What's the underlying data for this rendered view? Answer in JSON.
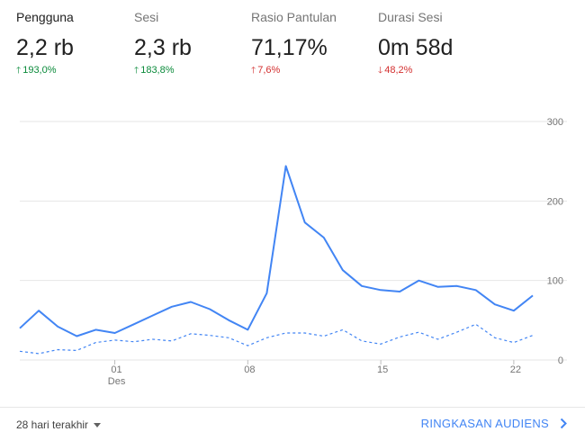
{
  "metrics": [
    {
      "label": "Pengguna",
      "value": "2,2 rb",
      "change": "193,0%",
      "direction": "up"
    },
    {
      "label": "Sesi",
      "value": "2,3 rb",
      "change": "183,8%",
      "direction": "up"
    },
    {
      "label": "Rasio Pantulan",
      "value": "71,17%",
      "change": "7,6%",
      "direction": "up-bad"
    },
    {
      "label": "Durasi Sesi",
      "value": "0m 58d",
      "change": "48,2%",
      "direction": "down"
    }
  ],
  "colors": {
    "accent": "#4285f4",
    "positive": "#0a8a3a",
    "negative": "#d32f2f",
    "grid": "#e6e6e6"
  },
  "chart_data": {
    "type": "line",
    "x_tick_labels": [
      "01",
      "08",
      "15",
      "22"
    ],
    "x_sublabel": "Des",
    "y_ticks": [
      0,
      100,
      200,
      300
    ],
    "ylim": [
      0,
      300
    ],
    "series": [
      {
        "style": "solid",
        "values": [
          40,
          62,
          42,
          30,
          38,
          34,
          45,
          56,
          67,
          73,
          64,
          50,
          38,
          84,
          244,
          173,
          154,
          113,
          93,
          88,
          86,
          100,
          92,
          93,
          88,
          70,
          62,
          81
        ]
      },
      {
        "style": "dashed",
        "values": [
          11,
          8,
          13,
          12,
          22,
          25,
          23,
          26,
          24,
          33,
          31,
          28,
          18,
          28,
          34,
          34,
          30,
          38,
          24,
          20,
          29,
          35,
          26,
          35,
          45,
          28,
          22,
          31
        ]
      }
    ]
  },
  "footer": {
    "range_label": "28 hari terakhir",
    "link_label": "RINGKASAN AUDIENS"
  }
}
